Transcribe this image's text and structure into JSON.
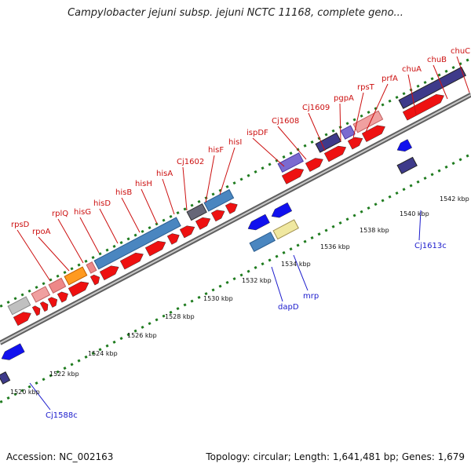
{
  "title": "Campylobacter jejuni subsp. jejuni NCTC 11168, complete geno...",
  "footer": {
    "accession": "Accession: NC_002163",
    "topology": "Topology: circular; Length: 1,641,481 bp; Genes: 1,679"
  },
  "colors": {
    "backbone": "#909090",
    "gene_forward": "#ee1111",
    "gene_reverse": "#1111ee",
    "tick_marker": "#1e7b1e",
    "label_top": "#cc1010",
    "label_bottom": "#1a1acc"
  },
  "kbp_ticks": [
    "1520 kbp",
    "1522 kbp",
    "1524 kbp",
    "1526 kbp",
    "1528 kbp",
    "1530 kbp",
    "1532 kbp",
    "1534 kbp",
    "1536 kbp",
    "1538 kbp",
    "1540 kbp",
    "1542 kbp"
  ],
  "top_genes": [
    "rpsD",
    "rpoA",
    "rplQ",
    "hisG",
    "hisD",
    "hisB",
    "hisH",
    "hisA",
    "Cj1602",
    "hisF",
    "hisI",
    "ispDF",
    "Cj1608",
    "Cj1609",
    "pgpA",
    "rpsT",
    "prfA",
    "chuA",
    "chuB",
    "chuC"
  ],
  "bottom_genes": [
    "Cj1588c",
    "dapD",
    "mrp",
    "Cj1613c"
  ]
}
